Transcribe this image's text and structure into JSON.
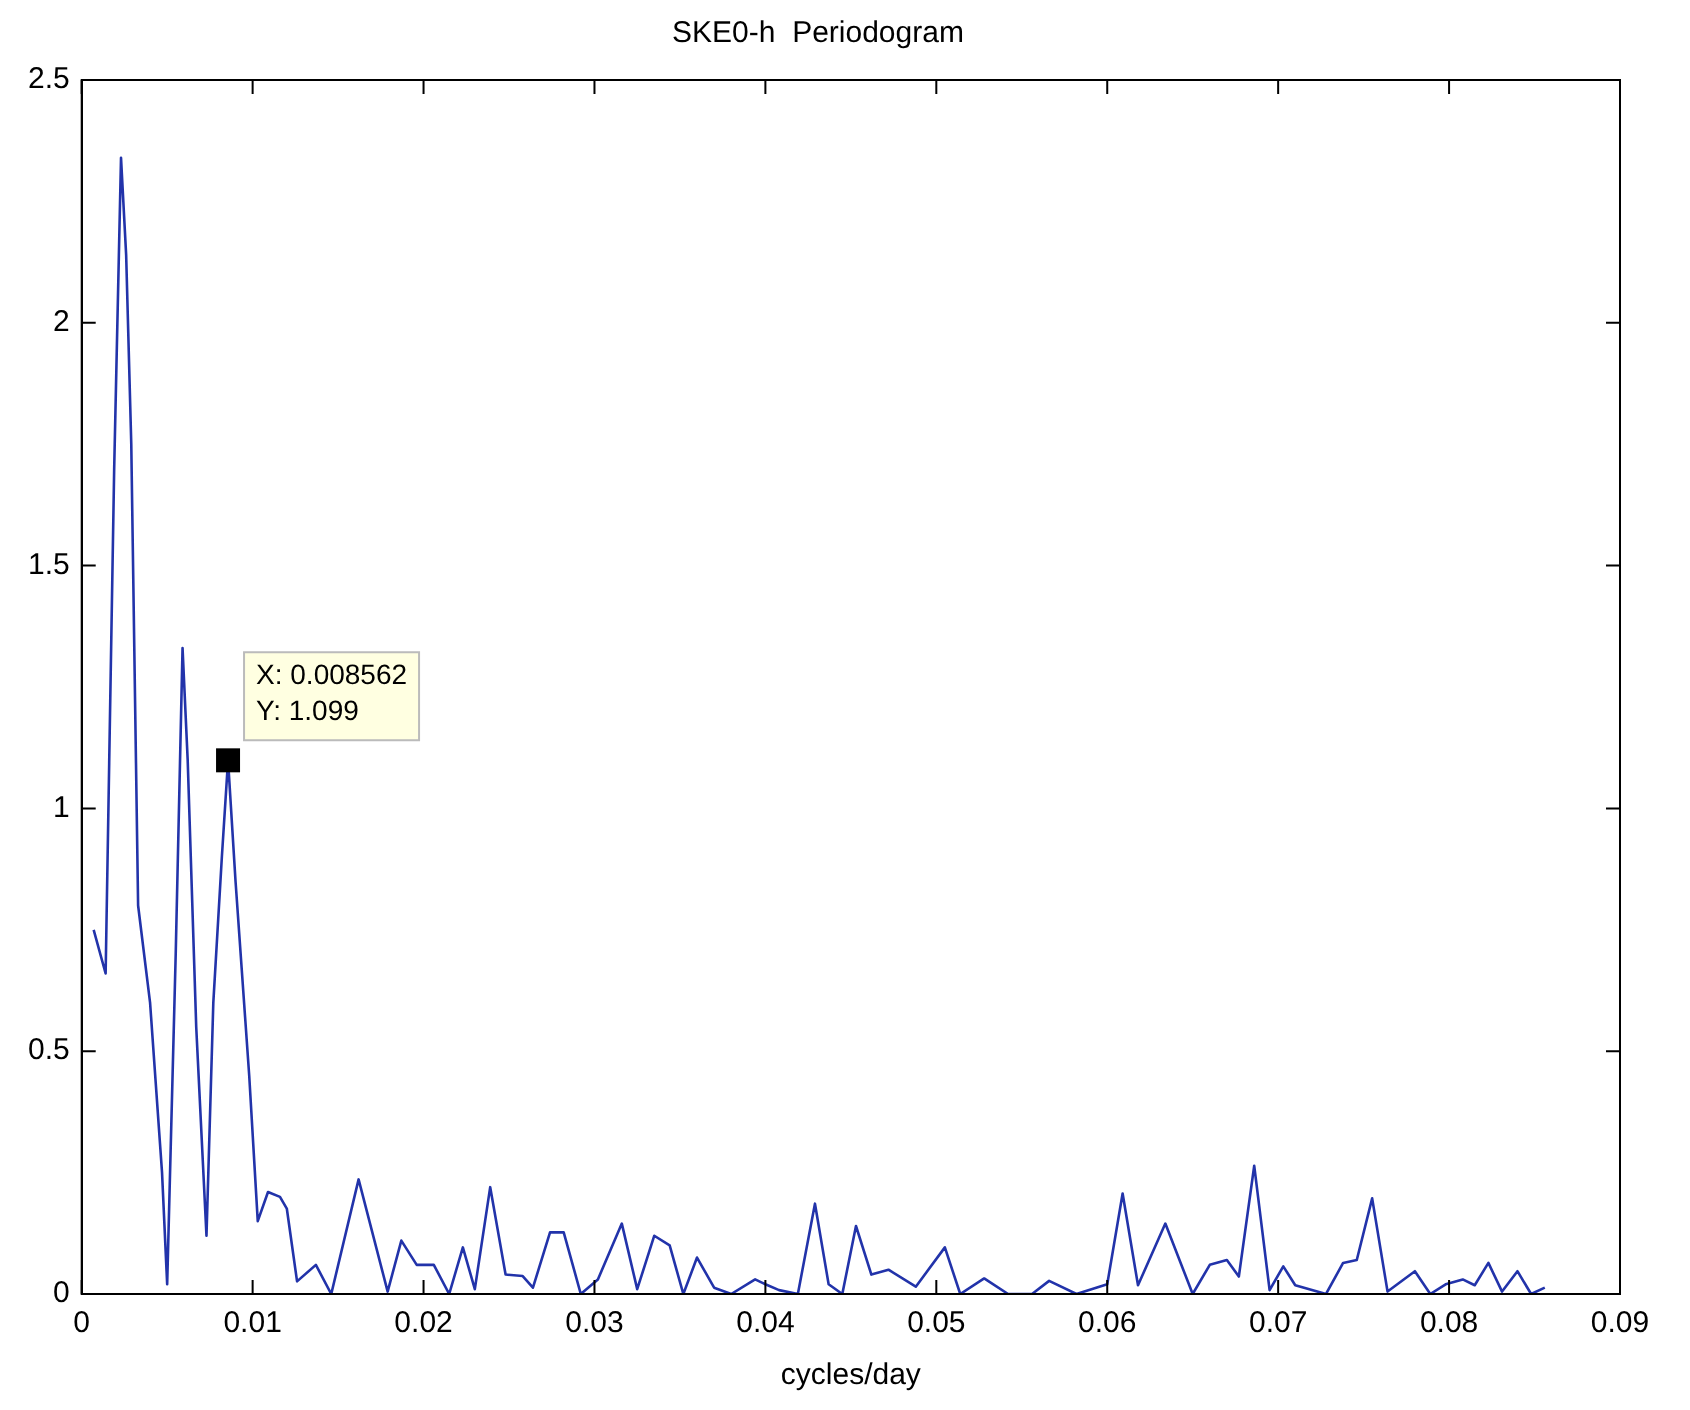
{
  "chart_data": {
    "type": "line",
    "title": "SKE0-h  Periodogram",
    "xlabel": "cycles/day",
    "x": [
      0.0007,
      0.0014,
      0.0019,
      0.0023,
      0.0026,
      0.0029,
      0.0033,
      0.004,
      0.0047,
      0.005,
      0.0055,
      0.0059,
      0.0062,
      0.0067,
      0.0073,
      0.0077,
      0.0082,
      0.008562,
      0.009,
      0.0098,
      0.0103,
      0.0109,
      0.0116,
      0.012,
      0.0126,
      0.0137,
      0.0146,
      0.0162,
      0.0179,
      0.0187,
      0.0196,
      0.0206,
      0.0215,
      0.0223,
      0.023,
      0.0239,
      0.0248,
      0.0258,
      0.0264,
      0.0274,
      0.0282,
      0.0292,
      0.0302,
      0.0316,
      0.0325,
      0.0335,
      0.0344,
      0.0352,
      0.036,
      0.037,
      0.038,
      0.0394,
      0.04,
      0.0408,
      0.0419,
      0.0429,
      0.0437,
      0.0445,
      0.0453,
      0.0462,
      0.0472,
      0.0488,
      0.0505,
      0.0514,
      0.0528,
      0.0542,
      0.0556,
      0.0566,
      0.0582,
      0.06,
      0.0609,
      0.0618,
      0.0634,
      0.065,
      0.066,
      0.067,
      0.0677,
      0.0686,
      0.0695,
      0.0703,
      0.071,
      0.0728,
      0.0738,
      0.0746,
      0.0755,
      0.0764,
      0.078,
      0.0789,
      0.0798,
      0.0808,
      0.0815,
      0.0823,
      0.0831,
      0.084,
      0.0848,
      0.0856
    ],
    "series": [
      {
        "color": "#2233aa",
        "values": [
          0.75,
          0.66,
          1.7,
          2.34,
          2.14,
          1.75,
          0.8,
          0.6,
          0.25,
          0.02,
          0.7,
          1.33,
          1.1,
          0.55,
          0.12,
          0.6,
          0.9,
          1.099,
          0.85,
          0.45,
          0.15,
          0.21,
          0.2,
          0.176,
          0.026,
          0.06,
          0.0,
          0.236,
          0.005,
          0.11,
          0.06,
          0.06,
          0.0,
          0.096,
          0.01,
          0.22,
          0.04,
          0.037,
          0.013,
          0.127,
          0.127,
          0.0,
          0.03,
          0.145,
          0.01,
          0.12,
          0.1,
          0.0,
          0.075,
          0.013,
          0.0,
          0.03,
          0.02,
          0.008,
          0.0,
          0.186,
          0.02,
          0.0,
          0.14,
          0.04,
          0.05,
          0.015,
          0.096,
          0.0,
          0.032,
          0.0,
          0.0,
          0.027,
          0.0,
          0.02,
          0.207,
          0.018,
          0.145,
          0.0,
          0.06,
          0.07,
          0.036,
          0.264,
          0.008,
          0.057,
          0.018,
          0.0,
          0.064,
          0.07,
          0.197,
          0.005,
          0.047,
          0.0,
          0.02,
          0.03,
          0.018,
          0.064,
          0.005,
          0.047,
          0.0,
          0.013
        ]
      }
    ],
    "xlim": [
      0,
      0.09
    ],
    "xticks": [
      0,
      0.01,
      0.02,
      0.03,
      0.04,
      0.05,
      0.06,
      0.07,
      0.08,
      0.09
    ],
    "ylim": [
      0,
      2.5
    ],
    "yticks": [
      0,
      0.5,
      1,
      1.5,
      2,
      2.5
    ],
    "annotations": [
      {
        "text": "X: 0.008562\nY: 1.099",
        "x": 0.008562,
        "y": 1.099
      }
    ],
    "grid": false,
    "legend": false,
    "marker": "none",
    "line_style": "solid"
  }
}
